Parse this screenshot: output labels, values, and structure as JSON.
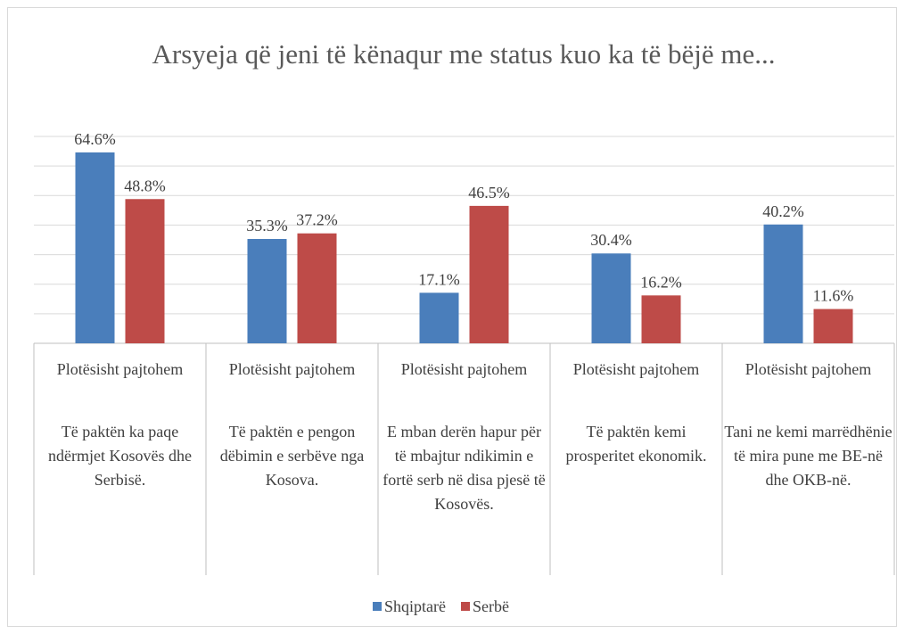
{
  "chart_data": {
    "type": "bar",
    "title": "Arsyeja që jeni të kënaqur me status kuo ka të bëjë me...",
    "categories": [
      "Të paktën ka paqe ndërmjet Kosovës dhe Serbisë.",
      "Të paktën e pengon dëbimin e serbëve nga Kosova.",
      "E mban derën hapur për të mbajtur ndikimin e fortë serb në disa pjesë të Kosovës.",
      "Të paktën kemi prosperitet ekonomik.",
      "Tani ne kemi marrëdhënie të mira pune me BE-në dhe OKB-në."
    ],
    "category_sublabels": [
      "Plotësisht pajtohem",
      "Plotësisht pajtohem",
      "Plotësisht pajtohem",
      "Plotësisht pajtohem",
      "Plotësisht pajtohem"
    ],
    "series": [
      {
        "name": "Shqiptarë",
        "color": "#4a7ebb",
        "values": [
          64.6,
          35.3,
          17.1,
          30.4,
          40.2
        ],
        "value_labels": [
          "64.6%",
          "35.3%",
          "17.1%",
          "30.4%",
          "40.2%"
        ]
      },
      {
        "name": "Serbë",
        "color": "#be4b48",
        "values": [
          48.8,
          37.2,
          46.5,
          16.2,
          11.6
        ],
        "value_labels": [
          "48.8%",
          "37.2%",
          "46.5%",
          "16.2%",
          "11.6%"
        ]
      }
    ],
    "ylim": [
      0,
      70
    ],
    "yticks": [
      0,
      10,
      20,
      30,
      40,
      50,
      60,
      70
    ],
    "grid": true,
    "legend": "bottom"
  }
}
